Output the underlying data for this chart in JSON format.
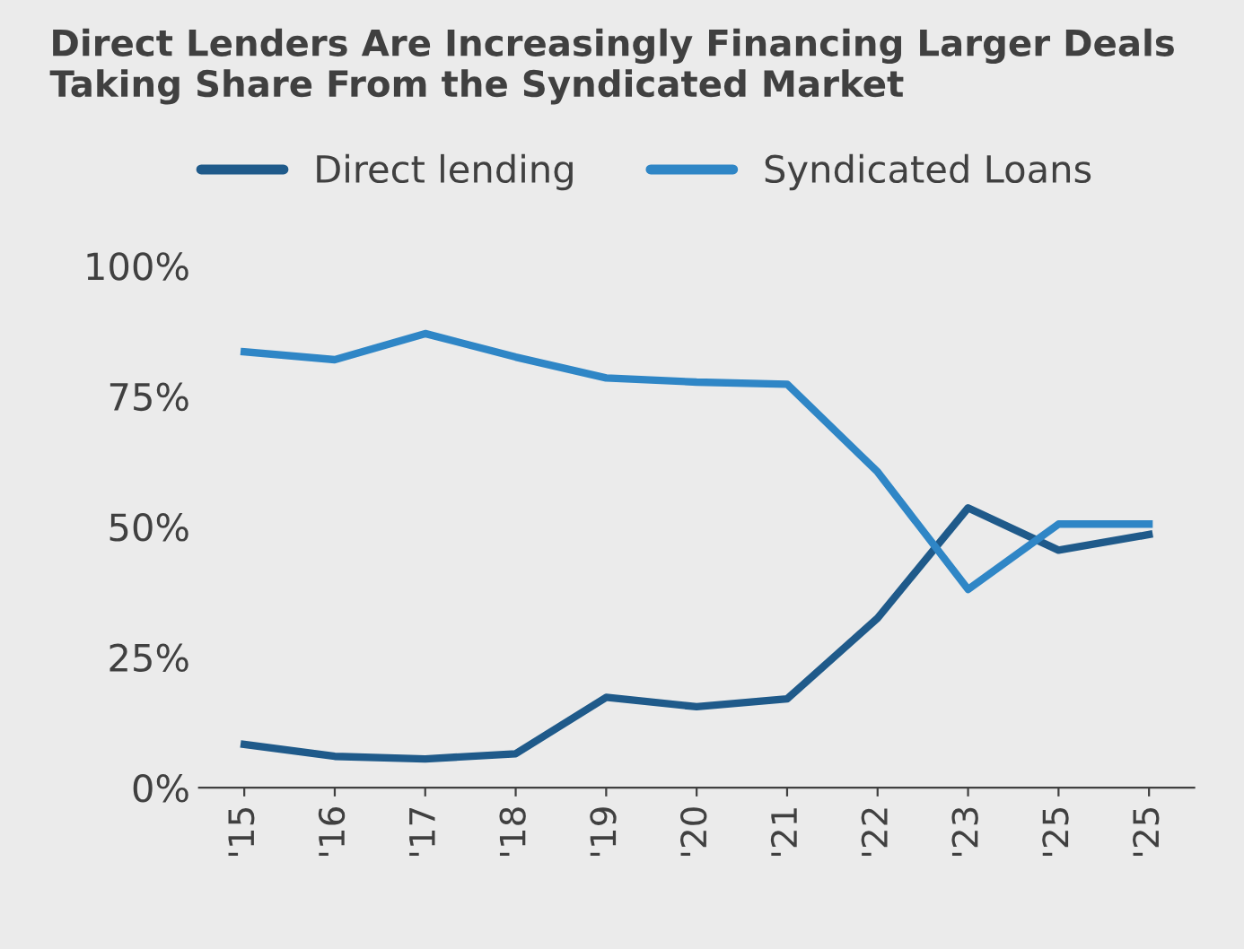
{
  "chart_data": {
    "type": "line",
    "title": "Direct Lenders Are Increasingly Financing Larger Deals\nTaking Share From the Syndicated Market",
    "categories": [
      "'15",
      "'16",
      "'17",
      "'18",
      "'19",
      "'20",
      "'21",
      "'22",
      "'23",
      "'25",
      "'25"
    ],
    "series": [
      {
        "name": "Direct lending",
        "color": "#1f5a8a",
        "values": [
          8.3,
          6,
          5.5,
          6.5,
          17.3,
          15.5,
          17,
          32.5,
          53.6,
          45.5,
          48.5
        ]
      },
      {
        "name": "Syndicated Loans",
        "color": "#2f86c6",
        "values": [
          83.5,
          82,
          87,
          82.5,
          78.5,
          77.7,
          77.3,
          60.5,
          38,
          50.5,
          50.5
        ]
      }
    ],
    "ylim": [
      0,
      100
    ],
    "yticks": [
      {
        "value": 0,
        "label": "0%"
      },
      {
        "value": 25,
        "label": "25%"
      },
      {
        "value": 50,
        "label": "50%"
      },
      {
        "value": 75,
        "label": "75%"
      },
      {
        "value": 100,
        "label": "100%"
      }
    ],
    "grid": false,
    "legend": "top",
    "marker": "none",
    "line_style": "solid"
  }
}
